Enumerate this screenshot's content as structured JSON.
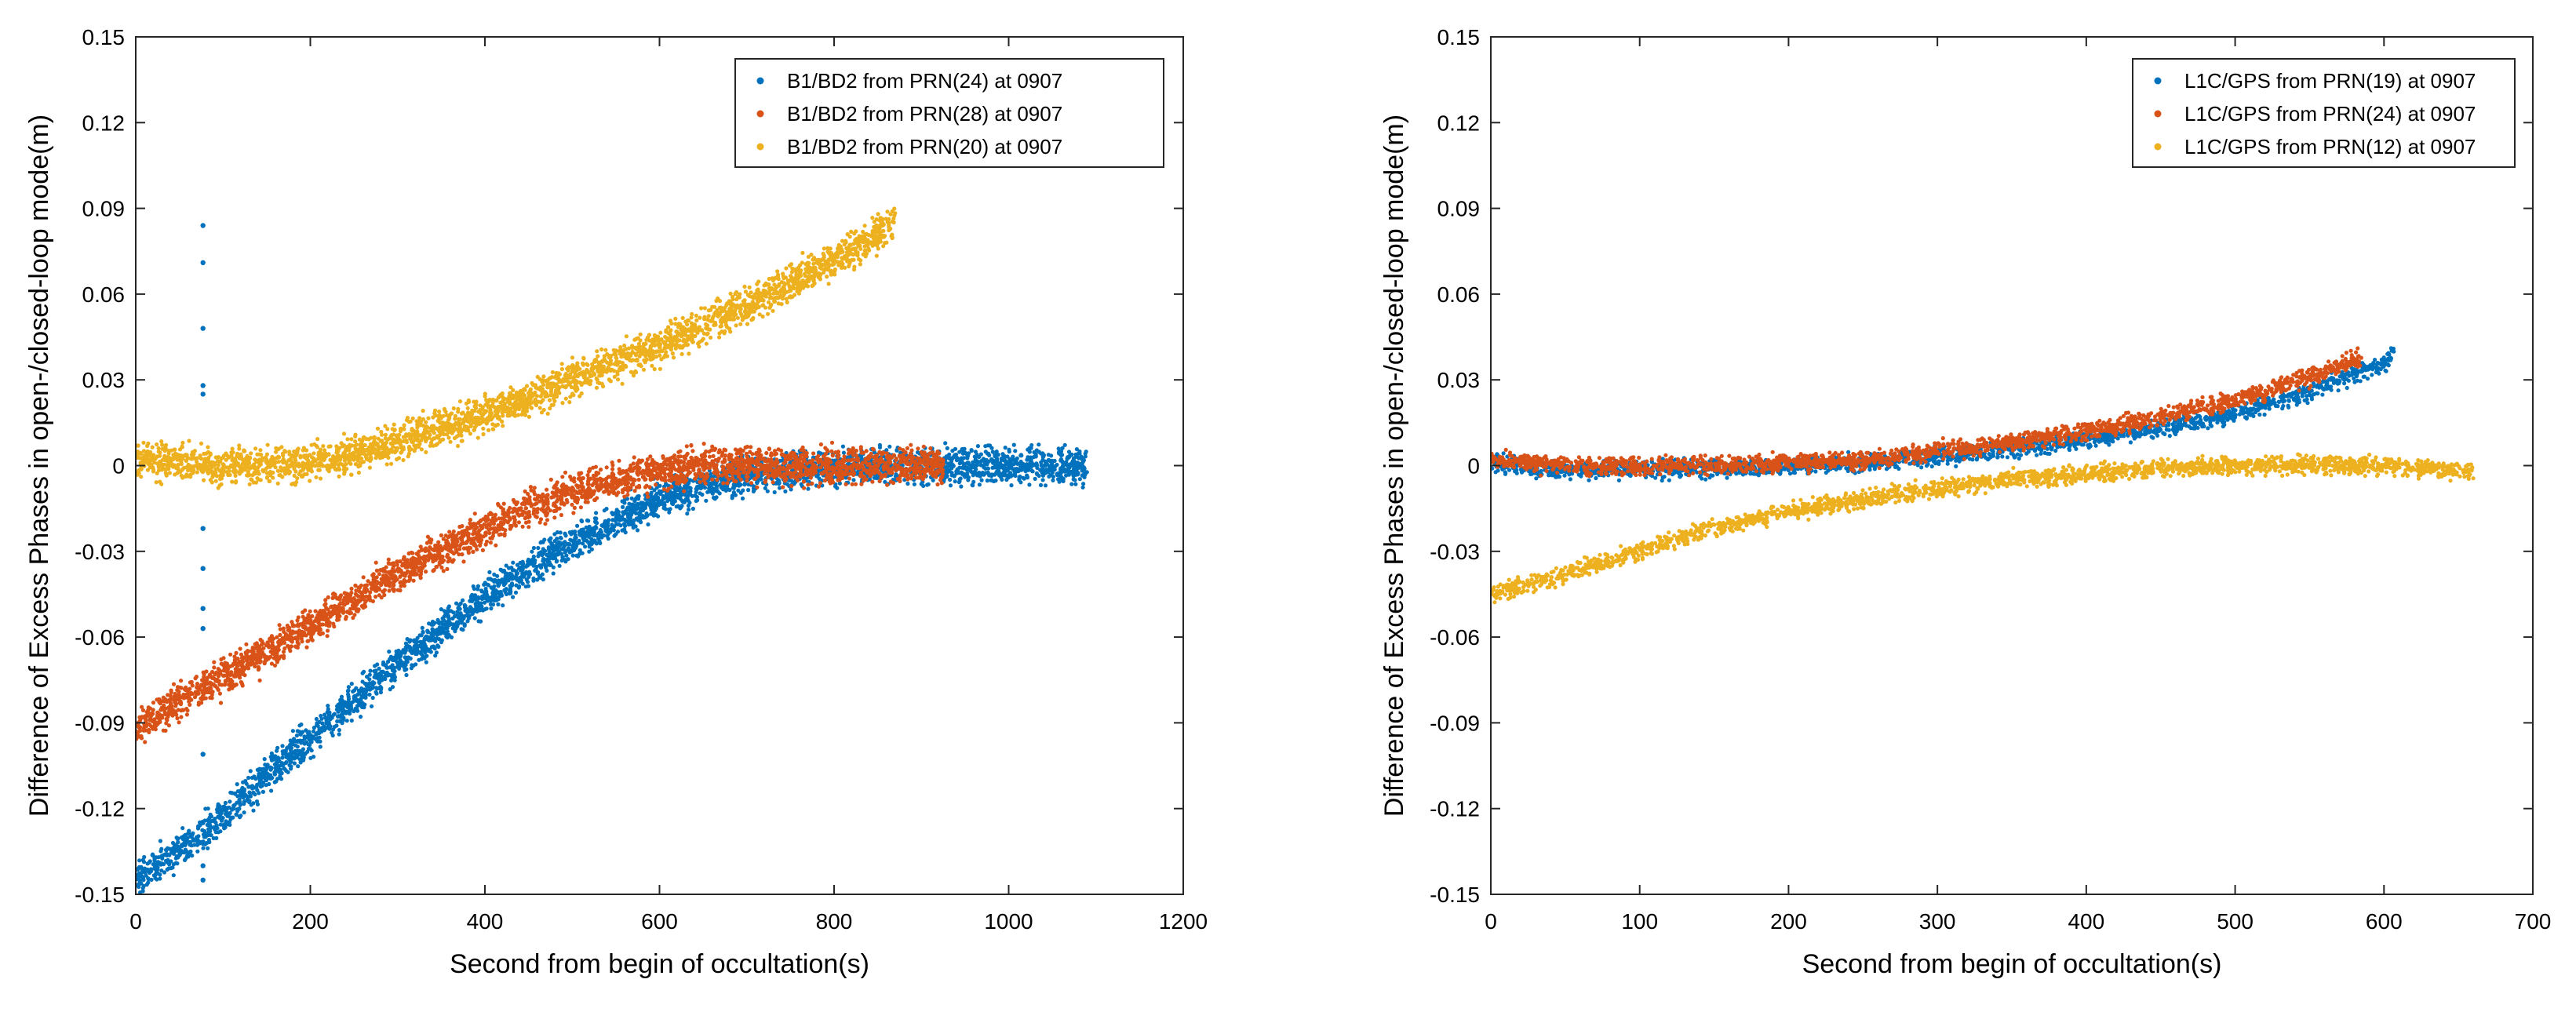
{
  "chart_data": [
    {
      "type": "scatter",
      "title": "",
      "xlabel": "Second from begin of occultation(s)",
      "ylabel": "Difference of Excess Phases in open-/closed-loop mode(m)",
      "xlim": [
        0,
        1200
      ],
      "ylim": [
        -0.15,
        0.15
      ],
      "xticks": [
        0,
        200,
        400,
        600,
        800,
        1000,
        1200
      ],
      "yticks": [
        -0.15,
        -0.12,
        -0.09,
        -0.06,
        -0.03,
        0,
        0.03,
        0.06,
        0.09,
        0.12,
        0.15
      ],
      "xtick_labels": [
        "0",
        "200",
        "400",
        "600",
        "800",
        "1000",
        "1200"
      ],
      "ytick_labels": [
        "-0.15",
        "-0.12",
        "-0.09",
        "-0.06",
        "-0.03",
        "0",
        "0.03",
        "0.06",
        "0.09",
        "0.12",
        "0.15"
      ],
      "grid": false,
      "legend_position": "top-right",
      "series": [
        {
          "name": "B1/BD2 from PRN(24) at 0907",
          "color": "#0072BD",
          "noise": 0.003,
          "x": [
            0,
            50,
            100,
            150,
            200,
            250,
            300,
            350,
            400,
            450,
            500,
            550,
            600,
            650,
            700,
            750,
            800,
            850,
            900,
            950,
            1000,
            1050,
            1090
          ],
          "y": [
            -0.145,
            -0.135,
            -0.122,
            -0.108,
            -0.095,
            -0.082,
            -0.069,
            -0.057,
            -0.046,
            -0.036,
            -0.027,
            -0.019,
            -0.012,
            -0.007,
            -0.004,
            -0.002,
            -0.001,
            0,
            0,
            0,
            0,
            0,
            0
          ],
          "outliers": [
            [
              77,
              0.084
            ],
            [
              77,
              0.071
            ],
            [
              77,
              0.048
            ],
            [
              77,
              0.028
            ],
            [
              77,
              0.025
            ],
            [
              77,
              -0.022
            ],
            [
              77,
              -0.036
            ],
            [
              77,
              -0.05
            ],
            [
              77,
              -0.057
            ],
            [
              77,
              -0.101
            ],
            [
              77,
              -0.14
            ],
            [
              77,
              -0.145
            ]
          ]
        },
        {
          "name": "B1/BD2 from PRN(28) at 0907",
          "color": "#D95319",
          "noise": 0.003,
          "x": [
            0,
            50,
            100,
            150,
            200,
            250,
            300,
            350,
            400,
            450,
            500,
            550,
            600,
            650,
            700,
            750,
            800,
            850,
            925
          ],
          "y": [
            -0.092,
            -0.083,
            -0.074,
            -0.065,
            -0.056,
            -0.047,
            -0.038,
            -0.03,
            -0.022,
            -0.015,
            -0.009,
            -0.005,
            -0.002,
            0,
            0,
            0,
            0,
            0,
            0
          ]
        },
        {
          "name": "B1/BD2 from PRN(20) at 0907",
          "color": "#EDB120",
          "noise": 0.003,
          "x": [
            0,
            50,
            100,
            150,
            200,
            250,
            300,
            350,
            400,
            450,
            500,
            550,
            600,
            650,
            700,
            750,
            800,
            850,
            870
          ],
          "y": [
            0.002,
            0.001,
            0,
            0,
            0.001,
            0.004,
            0.008,
            0.013,
            0.018,
            0.024,
            0.03,
            0.036,
            0.042,
            0.049,
            0.056,
            0.064,
            0.072,
            0.081,
            0.086
          ]
        }
      ]
    },
    {
      "type": "scatter",
      "title": "",
      "xlabel": "Second from begin of occultation(s)",
      "ylabel": "Difference of Excess Phases in open-/closed-loop mode(m)",
      "xlim": [
        0,
        700
      ],
      "ylim": [
        -0.15,
        0.15
      ],
      "xticks": [
        0,
        100,
        200,
        300,
        400,
        500,
        600,
        700
      ],
      "yticks": [
        -0.15,
        -0.12,
        -0.09,
        -0.06,
        -0.03,
        0,
        0.03,
        0.06,
        0.09,
        0.12,
        0.15
      ],
      "xtick_labels": [
        "0",
        "100",
        "200",
        "300",
        "400",
        "500",
        "600",
        "700"
      ],
      "ytick_labels": [
        "-0.15",
        "-0.12",
        "-0.09",
        "-0.06",
        "-0.03",
        "0",
        "0.03",
        "0.06",
        "0.09",
        "0.12",
        "0.15"
      ],
      "grid": false,
      "legend_position": "top-right",
      "series": [
        {
          "name": "L1C/GPS from PRN(19) at 0907",
          "color": "#0072BD",
          "noise": 0.0015,
          "x": [
            0,
            50,
            100,
            150,
            200,
            250,
            300,
            350,
            400,
            450,
            500,
            550,
            600,
            607
          ],
          "y": [
            0.001,
            -0.002,
            -0.001,
            -0.001,
            0,
            0.001,
            0.003,
            0.006,
            0.009,
            0.013,
            0.018,
            0.026,
            0.036,
            0.04
          ]
        },
        {
          "name": "L1C/GPS from PRN(24) at 0907",
          "color": "#D95319",
          "noise": 0.0015,
          "x": [
            0,
            50,
            100,
            150,
            200,
            250,
            300,
            350,
            400,
            450,
            500,
            550,
            585
          ],
          "y": [
            0.002,
            0,
            0,
            0,
            0.001,
            0.002,
            0.005,
            0.008,
            0.012,
            0.017,
            0.023,
            0.031,
            0.038
          ]
        },
        {
          "name": "L1C/GPS from PRN(12) at 0907",
          "color": "#EDB120",
          "noise": 0.0015,
          "x": [
            0,
            50,
            100,
            150,
            200,
            250,
            300,
            350,
            400,
            450,
            500,
            550,
            600,
            660
          ],
          "y": [
            -0.045,
            -0.038,
            -0.03,
            -0.022,
            -0.016,
            -0.012,
            -0.008,
            -0.005,
            -0.003,
            -0.001,
            0,
            0,
            0,
            -0.002
          ]
        }
      ]
    }
  ]
}
